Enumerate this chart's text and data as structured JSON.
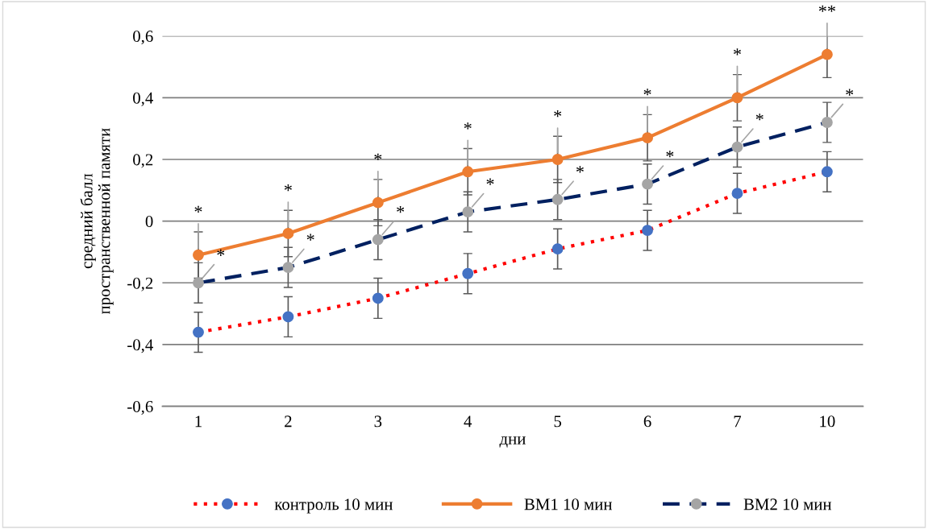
{
  "chart_data": {
    "type": "line",
    "xlabel": "дни",
    "ylabel": "средний балл\nпространственной памяти",
    "categories": [
      "1",
      "2",
      "3",
      "4",
      "5",
      "6",
      "7",
      "10"
    ],
    "ylim": [
      -0.6,
      0.6
    ],
    "yticks": [
      {
        "value": -0.6,
        "label": "-0,6"
      },
      {
        "value": -0.4,
        "label": "-0,4"
      },
      {
        "value": -0.2,
        "label": "-0,2"
      },
      {
        "value": 0,
        "label": "0"
      },
      {
        "value": 0.2,
        "label": "0,2"
      },
      {
        "value": 0.4,
        "label": "0,4"
      },
      {
        "value": 0.6,
        "label": "0,6"
      }
    ],
    "grid": "y",
    "legend": "bottom",
    "marker": "circle",
    "series": [
      {
        "name": "контроль 10 мин",
        "color": "#ff0000",
        "line_style": "dotted",
        "colors": [
          "#4472c4",
          "#4472c4",
          "#4472c4",
          "#4472c4",
          "#4472c4",
          "#4472c4",
          "#4472c4",
          "#4472c4"
        ],
        "values": [
          -0.36,
          -0.31,
          -0.25,
          -0.17,
          -0.09,
          -0.03,
          0.09,
          0.16
        ],
        "errors": [
          0.065,
          0.065,
          0.065,
          0.065,
          0.065,
          0.065,
          0.065,
          0.065
        ]
      },
      {
        "name": "ВМ1 10 мин",
        "color": "#ed7d31",
        "line_style": "solid",
        "colors": [
          "#ed7d31",
          "#ed7d31",
          "#ed7d31",
          "#ed7d31",
          "#ed7d31",
          "#ed7d31",
          "#ed7d31",
          "#ed7d31"
        ],
        "values": [
          -0.11,
          -0.04,
          0.06,
          0.16,
          0.2,
          0.27,
          0.4,
          0.54
        ],
        "errors": [
          0.075,
          0.075,
          0.075,
          0.075,
          0.075,
          0.075,
          0.075,
          0.075
        ]
      },
      {
        "name": "ВМ2 10 мин",
        "color": "#002060",
        "line_style": "dashed",
        "colors": [
          "#a5a5a5",
          "#a5a5a5",
          "#a5a5a5",
          "#a5a5a5",
          "#a5a5a5",
          "#a5a5a5",
          "#a5a5a5",
          "#a5a5a5"
        ],
        "values": [
          -0.2,
          -0.15,
          -0.06,
          0.03,
          0.07,
          0.12,
          0.24,
          0.32
        ],
        "errors": [
          0.065,
          0.065,
          0.065,
          0.065,
          0.065,
          0.065,
          0.065,
          0.065
        ]
      }
    ],
    "annotations": [
      {
        "text": "*",
        "x": "1",
        "y": -0.11
      },
      {
        "text": "*",
        "x": "2",
        "y": -0.04
      },
      {
        "text": "*",
        "x": "3",
        "y": 0.06
      },
      {
        "text": "*",
        "x": "4",
        "y": 0.16
      },
      {
        "text": "*",
        "x": "5",
        "y": 0.2
      },
      {
        "text": "*",
        "x": "6",
        "y": 0.27
      },
      {
        "text": "*",
        "x": "7",
        "y": 0.4
      },
      {
        "text": "**",
        "x": "10",
        "y": 0.54
      },
      {
        "text": "*",
        "x": "1",
        "y": -0.2
      },
      {
        "text": "*",
        "x": "2",
        "y": -0.15
      },
      {
        "text": "*",
        "x": "3",
        "y": -0.06
      },
      {
        "text": "*",
        "x": "4",
        "y": 0.03
      },
      {
        "text": "*",
        "x": "5",
        "y": 0.07
      },
      {
        "text": "*",
        "x": "6",
        "y": 0.12
      },
      {
        "text": "*",
        "x": "7",
        "y": 0.24
      },
      {
        "text": "*",
        "x": "10",
        "y": 0.32
      }
    ]
  }
}
